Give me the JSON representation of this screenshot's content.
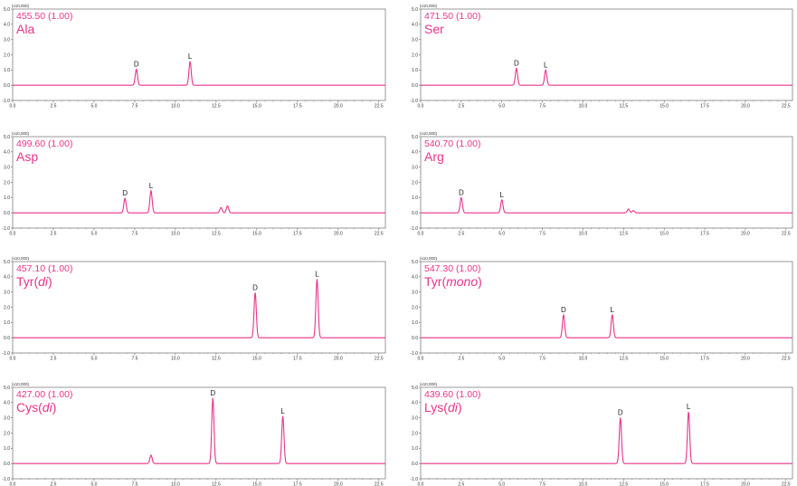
{
  "colors": {
    "trace": "#e8338a",
    "label": "#e8338a",
    "axis": "#555555"
  },
  "chart_data": [
    {
      "type": "line",
      "mass": "455.50 (1.00)",
      "name": "Ala",
      "name_em": "",
      "name_close": "",
      "y_scale_label": "(x10,000)",
      "ylim": [
        -1.0,
        5.0
      ],
      "xlim": [
        0,
        22.9
      ],
      "y_ticks": [
        "5.0",
        "4.0",
        "3.0",
        "2.0",
        "1.0",
        "0.0",
        "-1.0"
      ],
      "x_ticks": [
        "0.0",
        "2.5",
        "5.0",
        "7.5",
        "10.0",
        "12.5",
        "15.0",
        "17.5",
        "20.0",
        "22.5"
      ],
      "peaks": [
        {
          "label": "D",
          "x": 7.6,
          "y": 1.05
        },
        {
          "label": "L",
          "x": 10.9,
          "y": 1.55
        }
      ],
      "minor_peaks": []
    },
    {
      "type": "line",
      "mass": "471.50 (1.00)",
      "name": "Ser",
      "name_em": "",
      "name_close": "",
      "y_scale_label": "(x10,000)",
      "ylim": [
        -1.0,
        5.0
      ],
      "xlim": [
        0,
        22.9
      ],
      "y_ticks": [
        "5.0",
        "4.0",
        "3.0",
        "2.0",
        "1.0",
        "0.0",
        "-1.0"
      ],
      "x_ticks": [
        "0.0",
        "2.5",
        "5.0",
        "7.5",
        "10.0",
        "12.5",
        "15.0",
        "17.5",
        "20.0",
        "22.5"
      ],
      "peaks": [
        {
          "label": "D",
          "x": 5.9,
          "y": 1.1
        },
        {
          "label": "L",
          "x": 7.7,
          "y": 1.0
        }
      ],
      "minor_peaks": []
    },
    {
      "type": "line",
      "mass": "499.60 (1.00)",
      "name": "Asp",
      "name_em": "",
      "name_close": "",
      "y_scale_label": "(x10,000)",
      "ylim": [
        -1.0,
        5.0
      ],
      "xlim": [
        0,
        22.9
      ],
      "y_ticks": [
        "5.0",
        "4.0",
        "3.0",
        "2.0",
        "1.0",
        "0.0",
        "-1.0"
      ],
      "x_ticks": [
        "0.0",
        "2.5",
        "5.0",
        "7.5",
        "10.0",
        "12.5",
        "15.0",
        "17.5",
        "20.0",
        "22.5"
      ],
      "peaks": [
        {
          "label": "D",
          "x": 6.9,
          "y": 0.95
        },
        {
          "label": "L",
          "x": 8.5,
          "y": 1.45
        }
      ],
      "minor_peaks": [
        {
          "x": 12.8,
          "y": 0.35
        },
        {
          "x": 13.2,
          "y": 0.45
        }
      ]
    },
    {
      "type": "line",
      "mass": "540.70 (1.00)",
      "name": "Arg",
      "name_em": "",
      "name_close": "",
      "y_scale_label": "(x10,000)",
      "ylim": [
        -1.0,
        5.0
      ],
      "xlim": [
        0,
        22.9
      ],
      "y_ticks": [
        "5.0",
        "4.0",
        "3.0",
        "2.0",
        "1.0",
        "0.0",
        "-1.0"
      ],
      "x_ticks": [
        "0.0",
        "2.5",
        "5.0",
        "7.5",
        "10.0",
        "12.5",
        "15.0",
        "17.5",
        "20.0",
        "22.5"
      ],
      "peaks": [
        {
          "label": "D",
          "x": 2.5,
          "y": 1.0
        },
        {
          "label": "L",
          "x": 5.0,
          "y": 0.85
        }
      ],
      "minor_peaks": [
        {
          "x": 12.8,
          "y": 0.25
        },
        {
          "x": 13.1,
          "y": 0.15
        }
      ]
    },
    {
      "type": "line",
      "mass": "457.10 (1.00)",
      "name": "Tyr(",
      "name_em": "di",
      "name_close": ")",
      "y_scale_label": "(x10,000)",
      "ylim": [
        -1.0,
        5.0
      ],
      "xlim": [
        0,
        22.9
      ],
      "y_ticks": [
        "5.0",
        "4.0",
        "3.0",
        "2.0",
        "1.0",
        "0.0",
        "-1.0"
      ],
      "x_ticks": [
        "0.0",
        "2.5",
        "5.0",
        "7.5",
        "10.0",
        "12.5",
        "15.0",
        "17.5",
        "20.0",
        "22.5"
      ],
      "peaks": [
        {
          "label": "D",
          "x": 14.9,
          "y": 2.95
        },
        {
          "label": "L",
          "x": 18.7,
          "y": 3.85
        }
      ],
      "minor_peaks": []
    },
    {
      "type": "line",
      "mass": "547.30 (1.00)",
      "name": "Tyr(",
      "name_em": "mono",
      "name_close": ")",
      "y_scale_label": "(x10,000)",
      "ylim": [
        -1.0,
        5.0
      ],
      "xlim": [
        0,
        22.9
      ],
      "y_ticks": [
        "5.0",
        "4.0",
        "3.0",
        "2.0",
        "1.0",
        "0.0",
        "-1.0"
      ],
      "x_ticks": [
        "0.0",
        "2.5",
        "5.0",
        "7.5",
        "10.0",
        "12.5",
        "15.0",
        "17.5",
        "20.0",
        "22.5"
      ],
      "peaks": [
        {
          "label": "D",
          "x": 8.8,
          "y": 1.5
        },
        {
          "label": "L",
          "x": 11.8,
          "y": 1.5
        }
      ],
      "minor_peaks": []
    },
    {
      "type": "line",
      "mass": "427.00 (1.00)",
      "name": "Cys(",
      "name_em": "di",
      "name_close": ")",
      "y_scale_label": "(x10,000)",
      "ylim": [
        -1.0,
        5.0
      ],
      "xlim": [
        0,
        22.9
      ],
      "y_ticks": [
        "5.0",
        "4.0",
        "3.0",
        "2.0",
        "1.0",
        "0.0",
        "-1.0"
      ],
      "x_ticks": [
        "0.0",
        "2.5",
        "5.0",
        "7.5",
        "10.0",
        "12.5",
        "15.0",
        "17.5",
        "20.0",
        "22.5"
      ],
      "peaks": [
        {
          "label": "D",
          "x": 12.3,
          "y": 4.3
        },
        {
          "label": "L",
          "x": 16.6,
          "y": 3.1
        }
      ],
      "minor_peaks": [
        {
          "x": 8.5,
          "y": 0.55
        }
      ]
    },
    {
      "type": "line",
      "mass": "439.60 (1.00)",
      "name": "Lys(",
      "name_em": "di",
      "name_close": ")",
      "y_scale_label": "(x10,000)",
      "ylim": [
        -1.0,
        5.0
      ],
      "xlim": [
        0,
        22.9
      ],
      "y_ticks": [
        "5.0",
        "4.0",
        "3.0",
        "2.0",
        "1.0",
        "0.0",
        "-1.0"
      ],
      "x_ticks": [
        "0.0",
        "2.5",
        "5.0",
        "7.5",
        "10.0",
        "12.5",
        "15.0",
        "17.5",
        "20.0",
        "22.5"
      ],
      "peaks": [
        {
          "label": "D",
          "x": 12.3,
          "y": 3.0
        },
        {
          "label": "L",
          "x": 16.5,
          "y": 3.4
        }
      ],
      "minor_peaks": []
    }
  ]
}
